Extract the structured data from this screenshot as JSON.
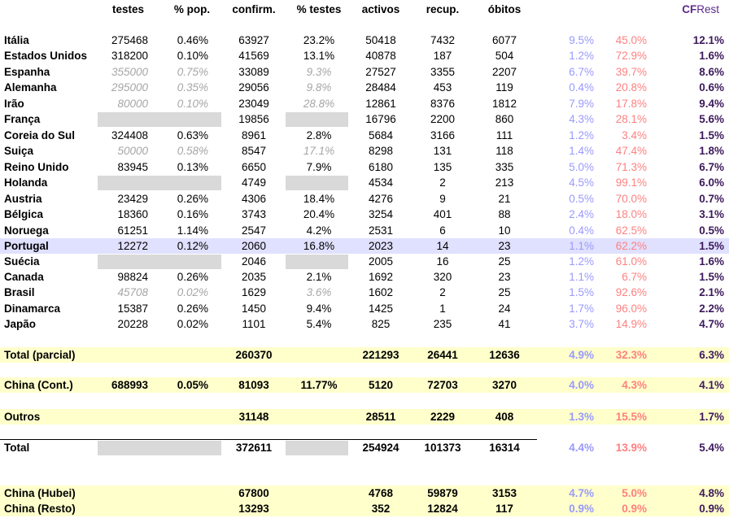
{
  "headers": {
    "testes": "testes",
    "pop": "% pop.",
    "confirm": "confirm.",
    "pct_testes": "% testes",
    "activos": "activos",
    "recup": "recup.",
    "obitos": "óbitos",
    "cfrest_cf": "CF",
    "cfrest_rest": "Rest"
  },
  "rows": [
    {
      "name": "Itália",
      "testes": "275468",
      "pop": "0.46%",
      "confirm": "63927",
      "pct": "23.2%",
      "activos": "50418",
      "recup": "7432",
      "obitos": "6077",
      "p1": "9.5%",
      "p2": "45.0%",
      "cfr": "12.1%",
      "style": "n"
    },
    {
      "name": "Estados Unidos",
      "testes": "318200",
      "pop": "0.10%",
      "confirm": "41569",
      "pct": "13.1%",
      "activos": "40878",
      "recup": "187",
      "obitos": "504",
      "p1": "1.2%",
      "p2": "72.9%",
      "cfr": "1.6%",
      "style": "n"
    },
    {
      "name": "Espanha",
      "testes": "355000",
      "pop": "0.75%",
      "confirm": "33089",
      "pct": "9.3%",
      "activos": "27527",
      "recup": "3355",
      "obitos": "2207",
      "p1": "6.7%",
      "p2": "39.7%",
      "cfr": "8.6%",
      "style": "i"
    },
    {
      "name": "Alemanha",
      "testes": "295000",
      "pop": "0.35%",
      "confirm": "29056",
      "pct": "9.8%",
      "activos": "28484",
      "recup": "453",
      "obitos": "119",
      "p1": "0.4%",
      "p2": "20.8%",
      "cfr": "0.6%",
      "style": "i"
    },
    {
      "name": "Irão",
      "testes": "80000",
      "pop": "0.10%",
      "confirm": "23049",
      "pct": "28.8%",
      "activos": "12861",
      "recup": "8376",
      "obitos": "1812",
      "p1": "7.9%",
      "p2": "17.8%",
      "cfr": "9.4%",
      "style": "i"
    },
    {
      "name": "França",
      "testes": "",
      "pop": "",
      "confirm": "19856",
      "pct": "",
      "activos": "16796",
      "recup": "2200",
      "obitos": "860",
      "p1": "4.3%",
      "p2": "28.1%",
      "cfr": "5.6%",
      "style": "g"
    },
    {
      "name": "Coreia do Sul",
      "testes": "324408",
      "pop": "0.63%",
      "confirm": "8961",
      "pct": "2.8%",
      "activos": "5684",
      "recup": "3166",
      "obitos": "111",
      "p1": "1.2%",
      "p2": "3.4%",
      "cfr": "1.5%",
      "style": "n"
    },
    {
      "name": "Suiça",
      "testes": "50000",
      "pop": "0.58%",
      "confirm": "8547",
      "pct": "17.1%",
      "activos": "8298",
      "recup": "131",
      "obitos": "118",
      "p1": "1.4%",
      "p2": "47.4%",
      "cfr": "1.8%",
      "style": "i"
    },
    {
      "name": "Reino Unido",
      "testes": "83945",
      "pop": "0.13%",
      "confirm": "6650",
      "pct": "7.9%",
      "activos": "6180",
      "recup": "135",
      "obitos": "335",
      "p1": "5.0%",
      "p2": "71.3%",
      "cfr": "6.7%",
      "style": "n"
    },
    {
      "name": "Holanda",
      "testes": "",
      "pop": "",
      "confirm": "4749",
      "pct": "",
      "activos": "4534",
      "recup": "2",
      "obitos": "213",
      "p1": "4.5%",
      "p2": "99.1%",
      "cfr": "6.0%",
      "style": "g"
    },
    {
      "name": "Austria",
      "testes": "23429",
      "pop": "0.26%",
      "confirm": "4306",
      "pct": "18.4%",
      "activos": "4276",
      "recup": "9",
      "obitos": "21",
      "p1": "0.5%",
      "p2": "70.0%",
      "cfr": "0.7%",
      "style": "n"
    },
    {
      "name": "Bélgica",
      "testes": "18360",
      "pop": "0.16%",
      "confirm": "3743",
      "pct": "20.4%",
      "activos": "3254",
      "recup": "401",
      "obitos": "88",
      "p1": "2.4%",
      "p2": "18.0%",
      "cfr": "3.1%",
      "style": "n"
    },
    {
      "name": "Noruega",
      "testes": "61251",
      "pop": "1.14%",
      "confirm": "2547",
      "pct": "4.2%",
      "activos": "2531",
      "recup": "6",
      "obitos": "10",
      "p1": "0.4%",
      "p2": "62.5%",
      "cfr": "0.5%",
      "style": "n"
    },
    {
      "name": "Portugal",
      "testes": "12272",
      "pop": "0.12%",
      "confirm": "2060",
      "pct": "16.8%",
      "activos": "2023",
      "recup": "14",
      "obitos": "23",
      "p1": "1.1%",
      "p2": "62.2%",
      "cfr": "1.5%",
      "style": "n",
      "highlight": true
    },
    {
      "name": "Suécia",
      "testes": "",
      "pop": "",
      "confirm": "2046",
      "pct": "",
      "activos": "2005",
      "recup": "16",
      "obitos": "25",
      "p1": "1.2%",
      "p2": "61.0%",
      "cfr": "1.6%",
      "style": "g"
    },
    {
      "name": "Canada",
      "testes": "98824",
      "pop": "0.26%",
      "confirm": "2035",
      "pct": "2.1%",
      "activos": "1692",
      "recup": "320",
      "obitos": "23",
      "p1": "1.1%",
      "p2": "6.7%",
      "cfr": "1.5%",
      "style": "n"
    },
    {
      "name": "Brasil",
      "testes": "45708",
      "pop": "0.02%",
      "confirm": "1629",
      "pct": "3.6%",
      "activos": "1602",
      "recup": "2",
      "obitos": "25",
      "p1": "1.5%",
      "p2": "92.6%",
      "cfr": "2.1%",
      "style": "i"
    },
    {
      "name": "Dinamarca",
      "testes": "15387",
      "pop": "0.26%",
      "confirm": "1450",
      "pct": "9.4%",
      "activos": "1425",
      "recup": "1",
      "obitos": "24",
      "p1": "1.7%",
      "p2": "96.0%",
      "cfr": "2.2%",
      "style": "n"
    },
    {
      "name": "Japão",
      "testes": "20228",
      "pop": "0.02%",
      "confirm": "1101",
      "pct": "5.4%",
      "activos": "825",
      "recup": "235",
      "obitos": "41",
      "p1": "3.7%",
      "p2": "14.9%",
      "cfr": "4.7%",
      "style": "n"
    }
  ],
  "summary": [
    {
      "key": "total_parcial",
      "name": "Total (parcial)",
      "testes": "",
      "pop": "",
      "confirm": "260370",
      "pct": "",
      "activos": "221293",
      "recup": "26441",
      "obitos": "12636",
      "p1": "4.9%",
      "p2": "32.3%",
      "cfr": "6.3%",
      "bg": "yellow"
    },
    {
      "key": "china_cont",
      "name": "China (Cont.)",
      "testes": "688993",
      "pop": "0.05%",
      "confirm": "81093",
      "pct": "11.77%",
      "activos": "5120",
      "recup": "72703",
      "obitos": "3270",
      "p1": "4.0%",
      "p2": "4.3%",
      "cfr": "4.1%",
      "bg": "yellow"
    },
    {
      "key": "outros",
      "name": "Outros",
      "testes": "",
      "pop": "",
      "confirm": "31148",
      "pct": "",
      "activos": "28511",
      "recup": "2229",
      "obitos": "408",
      "p1": "1.3%",
      "p2": "15.5%",
      "cfr": "1.7%",
      "bg": "yellow"
    },
    {
      "key": "total",
      "name": "Total",
      "testes": "",
      "pop": "",
      "confirm": "372611",
      "pct": "",
      "activos": "254924",
      "recup": "101373",
      "obitos": "16314",
      "p1": "4.4%",
      "p2": "13.9%",
      "cfr": "5.4%",
      "bg": "white",
      "gray": true
    },
    {
      "key": "china_hubei",
      "name": "China (Hubei)",
      "testes": "",
      "pop": "",
      "confirm": "67800",
      "pct": "",
      "activos": "4768",
      "recup": "59879",
      "obitos": "3153",
      "p1": "4.7%",
      "p2": "5.0%",
      "cfr": "4.8%",
      "bg": "yellow"
    },
    {
      "key": "china_resto",
      "name": "China (Resto)",
      "testes": "",
      "pop": "",
      "confirm": "13293",
      "pct": "",
      "activos": "352",
      "recup": "12824",
      "obitos": "117",
      "p1": "0.9%",
      "p2": "0.9%",
      "cfr": "0.9%",
      "bg": "yellow"
    }
  ],
  "colors": {
    "p1": "#9999ff",
    "p2": "#ff8080",
    "cfr": "#3d1a5c",
    "cfrest": "#5c2a8c",
    "yellow": "#ffffcc",
    "highlight": "#e0e0ff",
    "gray_cell": "#d9d9d9",
    "italic_text": "#a6a6a6"
  }
}
